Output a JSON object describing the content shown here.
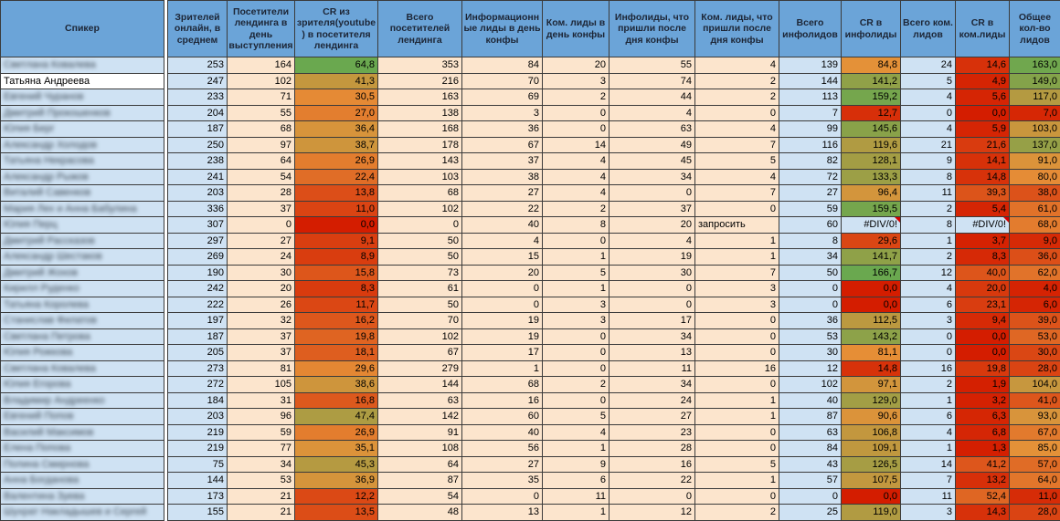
{
  "table": {
    "error_value": "#DIV/0!",
    "colors": {
      "header_bg": "#6ba4d8",
      "header_text": "#1d2636",
      "blue_cell": "#cfe2f3",
      "cream_cell": "#fce5cd",
      "selected_name_bg": "#ffffff",
      "grid": "#3b3b3b",
      "error_bg": "#cfe2f3",
      "error_corner": "#d40000"
    },
    "scale_colors": {
      "min": "#d41d00",
      "mid": "#e69138",
      "max": "#6aa84f"
    },
    "scales": {
      "cr_youtube": {
        "min": 0,
        "max": 64.8
      },
      "cr_shared": {
        "min": 0,
        "max": 166.7
      }
    },
    "columns": [
      {
        "id": "speaker",
        "label": "Спикер",
        "type": "name"
      },
      {
        "id": "gap",
        "label": "",
        "type": "gap"
      },
      {
        "id": "viewers_online",
        "label": "Зрителей онлайн, в среднем",
        "type": "blue"
      },
      {
        "id": "landing_visitors_day",
        "label": "Посетители лендинга в день выступления",
        "type": "cream"
      },
      {
        "id": "cr_viewer_to_landing",
        "label": "CR из зрителя(youtube) в посетителя лендинга",
        "type": "scale",
        "scale": "cr_youtube"
      },
      {
        "id": "landing_visitors_total",
        "label": "Всего посетителей лендинга",
        "type": "cream"
      },
      {
        "id": "info_leads_day",
        "label": "Информационные лиды в день конфы",
        "type": "cream"
      },
      {
        "id": "com_leads_day",
        "label": "Ком. лиды в день конфы",
        "type": "cream"
      },
      {
        "id": "info_leads_after",
        "label": "Инфолиды, что пришли после дня конфы",
        "type": "cream"
      },
      {
        "id": "com_leads_after",
        "label": "Ком. лиды, что пришли после дня конфы",
        "type": "cream"
      },
      {
        "id": "info_leads_total",
        "label": "Всего инфолидов",
        "type": "blue"
      },
      {
        "id": "cr_info_leads",
        "label": "CR в инфолиды",
        "type": "scale",
        "scale": "cr_shared"
      },
      {
        "id": "com_leads_total",
        "label": "Всего ком. лидов",
        "type": "blue"
      },
      {
        "id": "cr_com_leads",
        "label": "CR  в ком.лиды",
        "type": "scale",
        "scale": "cr_shared"
      },
      {
        "id": "total_leads",
        "label": "Общее кол-во лидов",
        "type": "scale",
        "scale": "cr_shared"
      }
    ],
    "rows": [
      {
        "speaker": "Светлана Ковалева",
        "blurred": true,
        "values": [
          "253",
          "164",
          "64,8",
          "353",
          "84",
          "20",
          "55",
          "4",
          "139",
          "84,8",
          "24",
          "14,6",
          "163,0"
        ]
      },
      {
        "speaker": "Татьяна Андреева",
        "blurred": false,
        "values": [
          "247",
          "102",
          "41,3",
          "216",
          "70",
          "3",
          "74",
          "2",
          "144",
          "141,2",
          "5",
          "4,9",
          "149,0"
        ]
      },
      {
        "speaker": "Евгений Чуранов",
        "blurred": true,
        "values": [
          "233",
          "71",
          "30,5",
          "163",
          "69",
          "2",
          "44",
          "2",
          "113",
          "159,2",
          "4",
          "5,6",
          "117,0"
        ]
      },
      {
        "speaker": "Дмитрий Прокошенков",
        "blurred": true,
        "values": [
          "204",
          "55",
          "27,0",
          "138",
          "3",
          "0",
          "4",
          "0",
          "7",
          "12,7",
          "0",
          "0,0",
          "7,0"
        ]
      },
      {
        "speaker": "Юлия Берг",
        "blurred": true,
        "values": [
          "187",
          "68",
          "36,4",
          "168",
          "36",
          "0",
          "63",
          "4",
          "99",
          "145,6",
          "4",
          "5,9",
          "103,0"
        ]
      },
      {
        "speaker": "Александр Холодов",
        "blurred": true,
        "values": [
          "250",
          "97",
          "38,7",
          "178",
          "67",
          "14",
          "49",
          "7",
          "116",
          "119,6",
          "21",
          "21,6",
          "137,0"
        ]
      },
      {
        "speaker": "Татьяна Некрасова",
        "blurred": true,
        "values": [
          "238",
          "64",
          "26,9",
          "143",
          "37",
          "4",
          "45",
          "5",
          "82",
          "128,1",
          "9",
          "14,1",
          "91,0"
        ]
      },
      {
        "speaker": "Александр Рыжов",
        "blurred": true,
        "values": [
          "241",
          "54",
          "22,4",
          "103",
          "38",
          "4",
          "34",
          "4",
          "72",
          "133,3",
          "8",
          "14,8",
          "80,0"
        ]
      },
      {
        "speaker": "Виталий Савенков",
        "blurred": true,
        "values": [
          "203",
          "28",
          "13,8",
          "68",
          "27",
          "4",
          "0",
          "7",
          "27",
          "96,4",
          "11",
          "39,3",
          "38,0"
        ]
      },
      {
        "speaker": "Мария Лех и Анна Бабулина",
        "blurred": true,
        "values": [
          "336",
          "37",
          "11,0",
          "102",
          "22",
          "2",
          "37",
          "0",
          "59",
          "159,5",
          "2",
          "5,4",
          "61,0"
        ]
      },
      {
        "speaker": "Юлия Перц",
        "blurred": true,
        "values": [
          "307",
          "0",
          "0,0",
          "0",
          "40",
          "8",
          "20",
          "запросить",
          "60",
          "#DIV/0!",
          "8",
          "#DIV/0!",
          "68,0"
        ]
      },
      {
        "speaker": "Дмитрий Рассказов",
        "blurred": true,
        "values": [
          "297",
          "27",
          "9,1",
          "50",
          "4",
          "0",
          "4",
          "1",
          "8",
          "29,6",
          "1",
          "3,7",
          "9,0"
        ]
      },
      {
        "speaker": "Александр Шестаков",
        "blurred": true,
        "values": [
          "269",
          "24",
          "8,9",
          "50",
          "15",
          "1",
          "19",
          "1",
          "34",
          "141,7",
          "2",
          "8,3",
          "36,0"
        ]
      },
      {
        "speaker": "Дмитрий Жохов",
        "blurred": true,
        "values": [
          "190",
          "30",
          "15,8",
          "73",
          "20",
          "5",
          "30",
          "7",
          "50",
          "166,7",
          "12",
          "40,0",
          "62,0"
        ]
      },
      {
        "speaker": "Кирилл Руденко",
        "blurred": true,
        "values": [
          "242",
          "20",
          "8,3",
          "61",
          "0",
          "1",
          "0",
          "3",
          "0",
          "0,0",
          "4",
          "20,0",
          "4,0"
        ]
      },
      {
        "speaker": "Татьяна Королева",
        "blurred": true,
        "values": [
          "222",
          "26",
          "11,7",
          "50",
          "0",
          "3",
          "0",
          "3",
          "0",
          "0,0",
          "6",
          "23,1",
          "6,0"
        ]
      },
      {
        "speaker": "Станислав Филатов",
        "blurred": true,
        "values": [
          "197",
          "32",
          "16,2",
          "70",
          "19",
          "3",
          "17",
          "0",
          "36",
          "112,5",
          "3",
          "9,4",
          "39,0"
        ]
      },
      {
        "speaker": "Светлана Петрова",
        "blurred": true,
        "values": [
          "187",
          "37",
          "19,8",
          "102",
          "19",
          "0",
          "34",
          "0",
          "53",
          "143,2",
          "0",
          "0,0",
          "53,0"
        ]
      },
      {
        "speaker": "Юлия Рожкова",
        "blurred": true,
        "values": [
          "205",
          "37",
          "18,1",
          "67",
          "17",
          "0",
          "13",
          "0",
          "30",
          "81,1",
          "0",
          "0,0",
          "30,0"
        ]
      },
      {
        "speaker": "Светлана Ковалева",
        "blurred": true,
        "values": [
          "273",
          "81",
          "29,6",
          "279",
          "1",
          "0",
          "11",
          "16",
          "12",
          "14,8",
          "16",
          "19,8",
          "28,0"
        ]
      },
      {
        "speaker": "Юлия Егорова",
        "blurred": true,
        "values": [
          "272",
          "105",
          "38,6",
          "144",
          "68",
          "2",
          "34",
          "0",
          "102",
          "97,1",
          "2",
          "1,9",
          "104,0"
        ]
      },
      {
        "speaker": "Владимир Андреенко",
        "blurred": true,
        "values": [
          "184",
          "31",
          "16,8",
          "63",
          "16",
          "0",
          "24",
          "1",
          "40",
          "129,0",
          "1",
          "3,2",
          "41,0"
        ]
      },
      {
        "speaker": "Евгений Попов",
        "blurred": true,
        "values": [
          "203",
          "96",
          "47,4",
          "142",
          "60",
          "5",
          "27",
          "1",
          "87",
          "90,6",
          "6",
          "6,3",
          "93,0"
        ]
      },
      {
        "speaker": "Василий Максимов",
        "blurred": true,
        "values": [
          "219",
          "59",
          "26,9",
          "91",
          "40",
          "4",
          "23",
          "0",
          "63",
          "106,8",
          "4",
          "6,8",
          "67,0"
        ]
      },
      {
        "speaker": "Елена Попова",
        "blurred": true,
        "values": [
          "219",
          "77",
          "35,1",
          "108",
          "56",
          "1",
          "28",
          "0",
          "84",
          "109,1",
          "1",
          "1,3",
          "85,0"
        ]
      },
      {
        "speaker": "Полина Смирнова",
        "blurred": true,
        "values": [
          "75",
          "34",
          "45,3",
          "64",
          "27",
          "9",
          "16",
          "5",
          "43",
          "126,5",
          "14",
          "41,2",
          "57,0"
        ]
      },
      {
        "speaker": "Анна Богданова",
        "blurred": true,
        "values": [
          "144",
          "53",
          "36,9",
          "87",
          "35",
          "6",
          "22",
          "1",
          "57",
          "107,5",
          "7",
          "13,2",
          "64,0"
        ]
      },
      {
        "speaker": "Валентина Зуева",
        "blurred": true,
        "values": [
          "173",
          "21",
          "12,2",
          "54",
          "0",
          "11",
          "0",
          "0",
          "0",
          "0,0",
          "11",
          "52,4",
          "11,0"
        ]
      },
      {
        "speaker": "Шухрат Накладышев и Сергей",
        "blurred": true,
        "values": [
          "155",
          "21",
          "13,5",
          "48",
          "13",
          "1",
          "12",
          "2",
          "25",
          "119,0",
          "3",
          "14,3",
          "28,0"
        ]
      }
    ]
  }
}
